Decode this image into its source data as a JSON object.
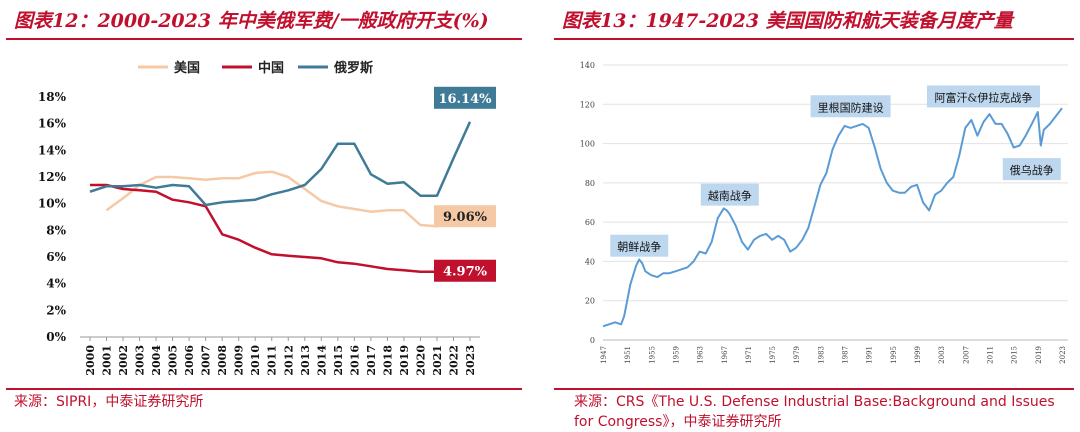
{
  "left": {
    "title": "图表12：2000-2023 年中美俄军费/一般政府开支(%)",
    "source": "来源：SIPRI，中泰证券研究所",
    "chart_data": {
      "type": "line",
      "x": [
        2000,
        2001,
        2002,
        2003,
        2004,
        2005,
        2006,
        2007,
        2008,
        2009,
        2010,
        2011,
        2012,
        2013,
        2014,
        2015,
        2016,
        2017,
        2018,
        2019,
        2020,
        2021,
        2022,
        2023
      ],
      "ylim": [
        0,
        18
      ],
      "yticks": [
        "0%",
        "2%",
        "4%",
        "6%",
        "8%",
        "10%",
        "12%",
        "14%",
        "16%",
        "18%"
      ],
      "legend_position": "top",
      "series": [
        {
          "name": "美国",
          "color": "#f5c9a6",
          "values": [
            null,
            9.5,
            10.4,
            11.4,
            12.0,
            12.0,
            11.9,
            11.8,
            11.9,
            11.9,
            12.3,
            12.4,
            12.0,
            11.1,
            10.2,
            9.8,
            9.6,
            9.4,
            9.5,
            9.5,
            8.4,
            8.3,
            9.5,
            9.06
          ]
        },
        {
          "name": "中国",
          "color": "#c0102e",
          "values": [
            11.4,
            11.4,
            11.1,
            11.0,
            10.9,
            10.3,
            10.1,
            9.8,
            7.7,
            7.3,
            6.7,
            6.2,
            6.1,
            6.0,
            5.9,
            5.6,
            5.5,
            5.3,
            5.1,
            5.0,
            4.9,
            4.9,
            4.9,
            4.97
          ]
        },
        {
          "name": "俄罗斯",
          "color": "#3f7b96",
          "values": [
            10.9,
            11.3,
            11.3,
            11.4,
            11.2,
            11.4,
            11.3,
            9.9,
            10.1,
            10.2,
            10.3,
            10.7,
            11.0,
            11.4,
            12.6,
            14.5,
            14.5,
            12.2,
            11.5,
            11.6,
            10.6,
            10.6,
            13.4,
            16.14
          ]
        }
      ],
      "end_labels": [
        {
          "series": "俄罗斯",
          "text": "16.14%",
          "bg": "#3f7b96",
          "fg": "#ffffff"
        },
        {
          "series": "美国",
          "text": "9.06%",
          "bg": "#f5c9a6",
          "fg": "#222222"
        },
        {
          "series": "中国",
          "text": "4.97%",
          "bg": "#c0102e",
          "fg": "#ffffff"
        }
      ],
      "grid": false
    }
  },
  "right": {
    "title": "图表13：1947-2023 美国国防和航天装备月度产量",
    "source_line1": "来源：CRS《The U.S. Defense Industrial Base:Background and Issues",
    "source_line2": "for Congress》，中泰证券研究所",
    "chart_data": {
      "type": "line",
      "color": "#5b9bd5",
      "xlim": [
        1947,
        2024
      ],
      "ylim": [
        0,
        140
      ],
      "yticks": [
        0,
        20,
        40,
        60,
        80,
        100,
        120,
        140
      ],
      "xticks": [
        1947,
        1951,
        1955,
        1959,
        1963,
        1967,
        1971,
        1975,
        1979,
        1983,
        1987,
        1991,
        1995,
        1999,
        2003,
        2007,
        2011,
        2015,
        2019,
        2023
      ],
      "grid": true,
      "series": [
        {
          "x": [
            1947,
            1948,
            1949,
            1950,
            1950.5,
            1951,
            1951.5,
            1952,
            1952.5,
            1953,
            1953.5,
            1954,
            1955,
            1956,
            1957,
            1958,
            1959,
            1960,
            1961,
            1962,
            1963,
            1964,
            1965,
            1966,
            1967,
            1967.5,
            1968,
            1969,
            1970,
            1971,
            1972,
            1973,
            1974,
            1975,
            1976,
            1977,
            1978,
            1979,
            1980,
            1981,
            1982,
            1983,
            1984,
            1985,
            1986,
            1987,
            1988,
            1989,
            1990,
            1991,
            1992,
            1993,
            1994,
            1995,
            1996,
            1997,
            1998,
            1999,
            2000,
            2001,
            2002,
            2003,
            2004,
            2005,
            2006,
            2007,
            2008,
            2009,
            2010,
            2011,
            2012,
            2013,
            2014,
            2015,
            2016,
            2017,
            2018,
            2019,
            2019.5,
            2020,
            2021,
            2022,
            2023
          ],
          "y": [
            7,
            8,
            9,
            8,
            12,
            20,
            28,
            33,
            38,
            41,
            39,
            35,
            33,
            32,
            34,
            34,
            35,
            36,
            37,
            40,
            45,
            44,
            50,
            62,
            67,
            66,
            64,
            58,
            50,
            46,
            51,
            53,
            54,
            51,
            53,
            51,
            45,
            47,
            51,
            57,
            68,
            79,
            85,
            97,
            104,
            109,
            108,
            109,
            110,
            108,
            98,
            87,
            80,
            76,
            75,
            75,
            78,
            79,
            70,
            66,
            74,
            76,
            80,
            83,
            94,
            108,
            112,
            104,
            111,
            115,
            110,
            110,
            105,
            98,
            99,
            104,
            110,
            116,
            99,
            107,
            110,
            114,
            118
          ]
        }
      ],
      "annotations": [
        {
          "text": "朝鲜战争",
          "x": 1953,
          "y": 48
        },
        {
          "text": "越南战争",
          "x": 1968,
          "y": 74
        },
        {
          "text": "里根国防建设",
          "x": 1988,
          "y": 119
        },
        {
          "text": "阿富汗&伊拉克战争",
          "x": 2010,
          "y": 124
        },
        {
          "text": "俄乌战争",
          "x": 2018,
          "y": 87
        }
      ]
    }
  }
}
